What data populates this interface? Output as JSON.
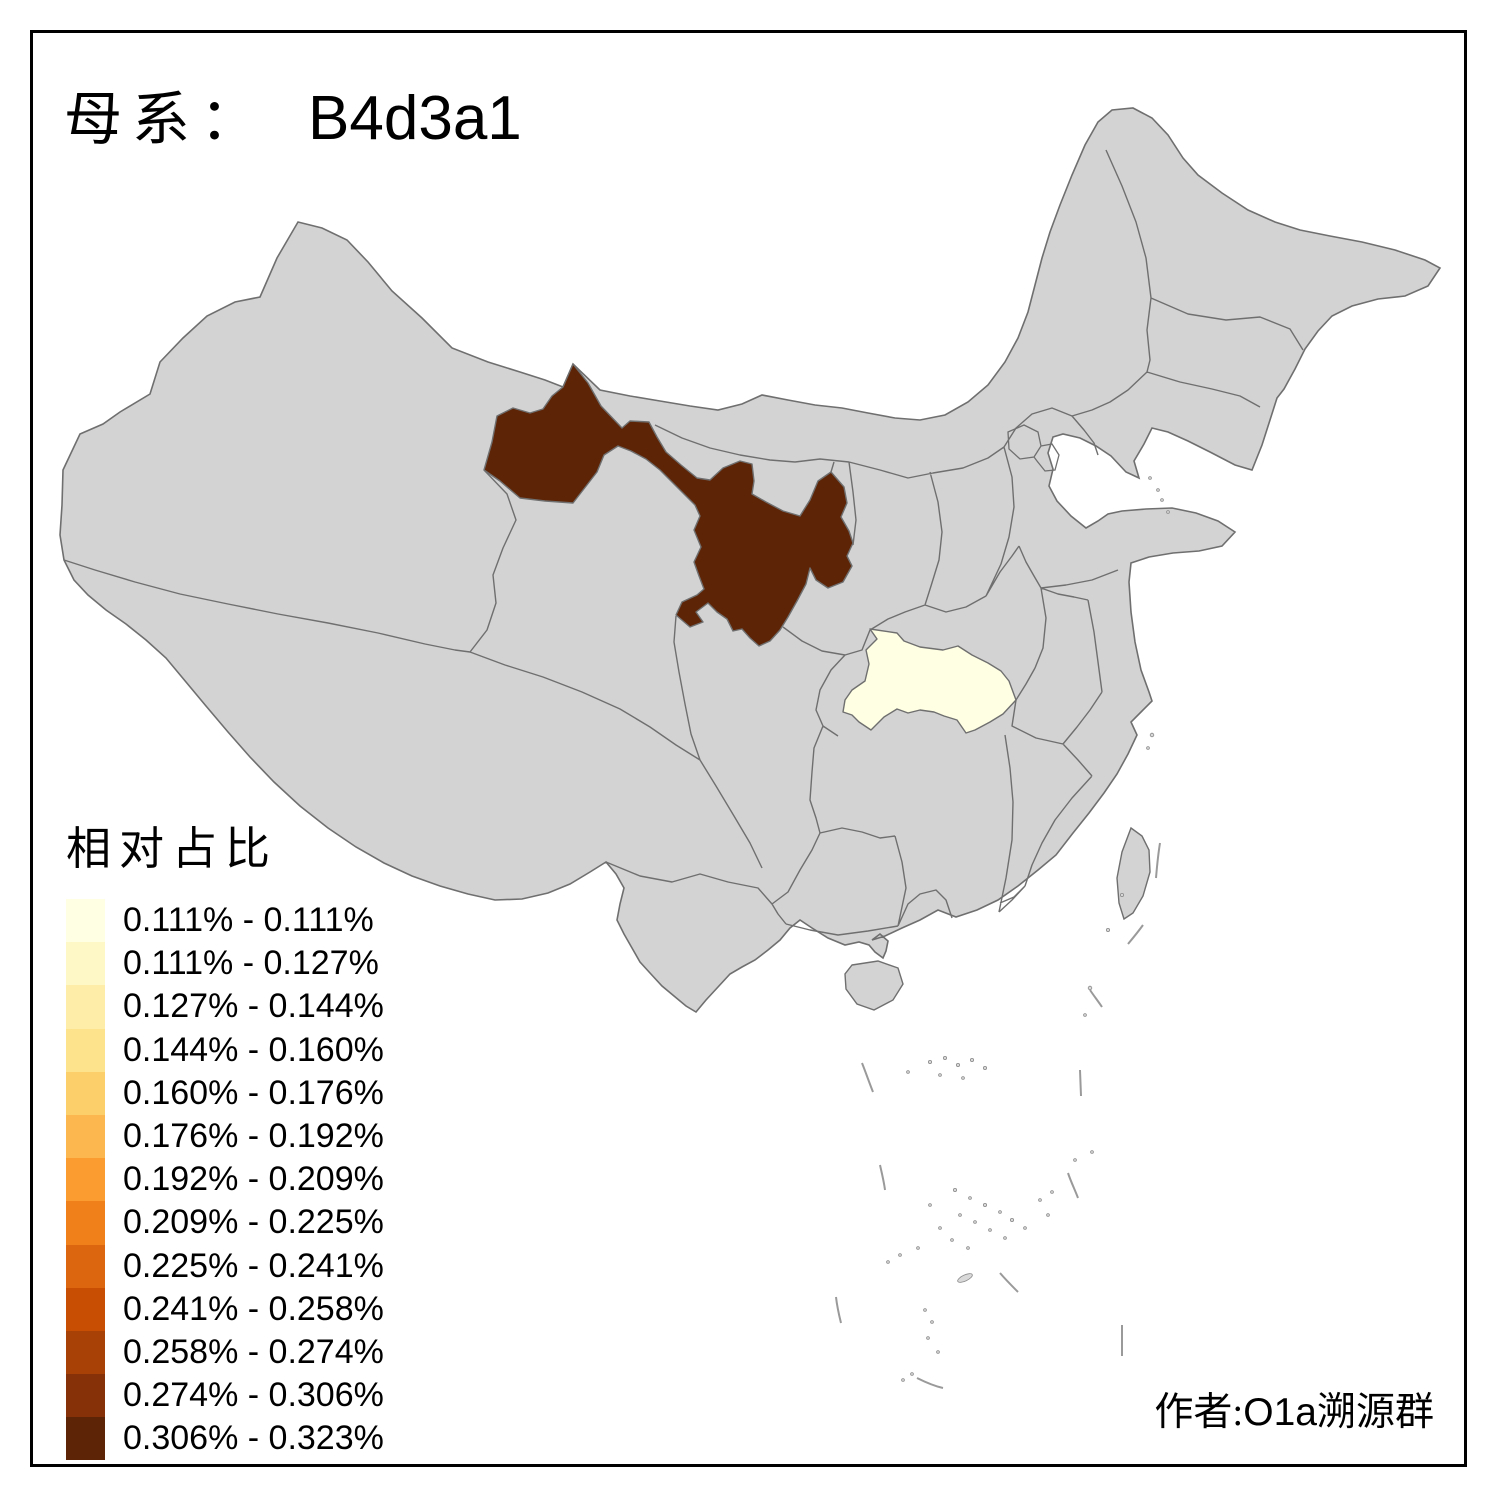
{
  "title": {
    "prefix": "母系：",
    "haplogroup": "B4d3a1"
  },
  "legend": {
    "title": "相对占比",
    "classes": [
      {
        "label": "0.111% - 0.111%",
        "color": "#FFFFE3"
      },
      {
        "label": "0.111% - 0.127%",
        "color": "#FEF7C6"
      },
      {
        "label": "0.127% - 0.144%",
        "color": "#FEEDA8"
      },
      {
        "label": "0.144% - 0.160%",
        "color": "#FDE38C"
      },
      {
        "label": "0.160% - 0.176%",
        "color": "#FDCF6B"
      },
      {
        "label": "0.176% - 0.192%",
        "color": "#FCB84F"
      },
      {
        "label": "0.192% - 0.209%",
        "color": "#FB9C31"
      },
      {
        "label": "0.209% - 0.225%",
        "color": "#F08019"
      },
      {
        "label": "0.225% - 0.241%",
        "color": "#DB660F"
      },
      {
        "label": "0.241% - 0.258%",
        "color": "#C84E04"
      },
      {
        "label": "0.258% - 0.274%",
        "color": "#A84106"
      },
      {
        "label": "0.274% - 0.306%",
        "color": "#863107"
      },
      {
        "label": "0.306% - 0.323%",
        "color": "#5E2406"
      }
    ]
  },
  "map": {
    "base_fill": "#D3D3D3",
    "border_color": "#6F6F6F",
    "sea_fill": "#FFFFFF",
    "frame_color": "#000000",
    "regions": [
      {
        "name": "gansu",
        "class_label": "0.306% - 0.323%",
        "color": "#5E2406"
      },
      {
        "name": "hubei",
        "class_label": "0.111% - 0.111%",
        "color": "#FFFFE3"
      }
    ]
  },
  "author": {
    "prefix": "作者:",
    "group_latin": "O1a",
    "group_zh": "溯源群"
  }
}
